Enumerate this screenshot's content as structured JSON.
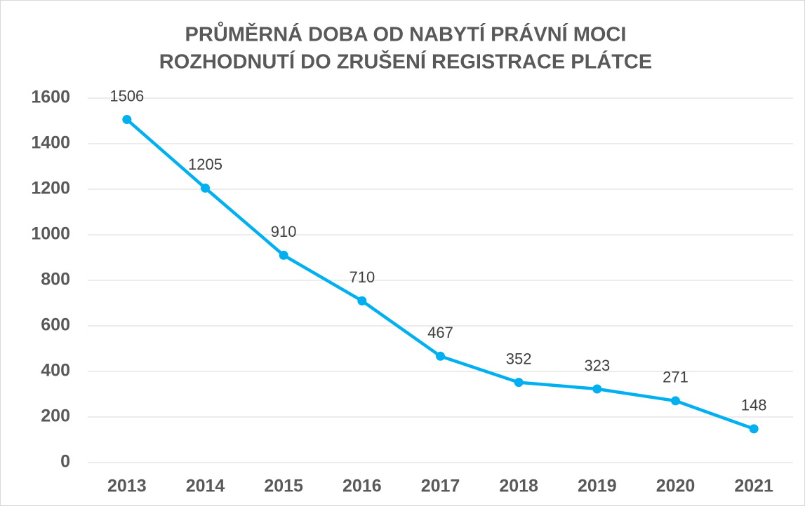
{
  "chart_data": {
    "type": "line",
    "title": [
      "PRŮMĚRNÁ DOBA OD NABYTÍ PRÁVNÍ MOCI",
      "ROZHODNUTÍ DO ZRUŠENÍ REGISTRACE PLÁTCE"
    ],
    "categories": [
      "2013",
      "2014",
      "2015",
      "2016",
      "2017",
      "2018",
      "2019",
      "2020",
      "2021"
    ],
    "values": [
      1506,
      1205,
      910,
      710,
      467,
      352,
      323,
      271,
      148
    ],
    "color": "#00b0f0",
    "ylim": [
      0,
      1600
    ],
    "yticks": [
      0,
      200,
      400,
      600,
      800,
      1000,
      1200,
      1400,
      1600
    ],
    "grid": true
  }
}
